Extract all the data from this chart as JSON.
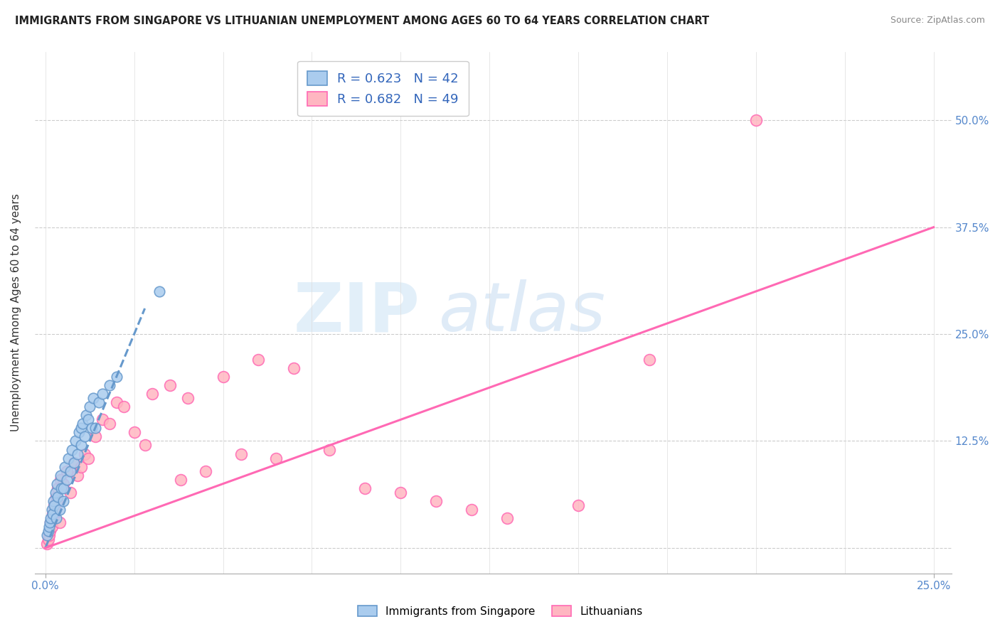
{
  "title": "IMMIGRANTS FROM SINGAPORE VS LITHUANIAN UNEMPLOYMENT AMONG AGES 60 TO 64 YEARS CORRELATION CHART",
  "source": "Source: ZipAtlas.com",
  "ylabel": "Unemployment Among Ages 60 to 64 years",
  "legend1_label": "R = 0.623   N = 42",
  "legend2_label": "R = 0.682   N = 49",
  "bottom_legend1": "Immigrants from Singapore",
  "bottom_legend2": "Lithuanians",
  "singapore_color": "#6699CC",
  "singapore_fill": "#AACCEE",
  "lithuanian_color": "#FF69B4",
  "lithuanian_fill": "#FFB6C1",
  "singapore_scatter_x": [
    0.05,
    0.08,
    0.1,
    0.12,
    0.15,
    0.18,
    0.2,
    0.22,
    0.25,
    0.28,
    0.3,
    0.32,
    0.35,
    0.4,
    0.42,
    0.45,
    0.5,
    0.5,
    0.55,
    0.6,
    0.65,
    0.7,
    0.75,
    0.8,
    0.85,
    0.9,
    0.95,
    1.0,
    1.0,
    1.05,
    1.1,
    1.15,
    1.2,
    1.25,
    1.3,
    1.35,
    1.4,
    1.5,
    1.6,
    1.8,
    2.0,
    3.2
  ],
  "singapore_scatter_y": [
    1.5,
    2.0,
    2.5,
    3.0,
    3.5,
    4.5,
    4.0,
    5.5,
    5.0,
    6.5,
    3.5,
    7.5,
    6.0,
    4.5,
    8.5,
    7.0,
    5.5,
    7.0,
    9.5,
    8.0,
    10.5,
    9.0,
    11.5,
    10.0,
    12.5,
    11.0,
    13.5,
    12.0,
    14.0,
    14.5,
    13.0,
    15.5,
    15.0,
    16.5,
    14.0,
    17.5,
    14.0,
    17.0,
    18.0,
    19.0,
    20.0,
    30.0
  ],
  "lithuanian_scatter_x": [
    0.05,
    0.08,
    0.1,
    0.12,
    0.15,
    0.18,
    0.2,
    0.22,
    0.25,
    0.28,
    0.3,
    0.32,
    0.35,
    0.4,
    0.42,
    0.5,
    0.6,
    0.7,
    0.8,
    0.9,
    1.0,
    1.1,
    1.2,
    1.4,
    1.6,
    1.8,
    2.0,
    2.2,
    2.5,
    2.8,
    3.0,
    3.5,
    3.8,
    4.0,
    4.5,
    5.0,
    5.5,
    6.0,
    6.5,
    7.0,
    8.0,
    9.0,
    10.0,
    11.0,
    12.0,
    13.0,
    15.0,
    17.0,
    20.0
  ],
  "lithuanian_scatter_y": [
    0.5,
    1.0,
    1.5,
    2.0,
    3.0,
    2.5,
    4.0,
    3.5,
    5.0,
    4.5,
    6.0,
    5.5,
    7.0,
    3.0,
    8.0,
    7.5,
    9.0,
    6.5,
    10.0,
    8.5,
    9.5,
    11.0,
    10.5,
    13.0,
    15.0,
    14.5,
    17.0,
    16.5,
    13.5,
    12.0,
    18.0,
    19.0,
    8.0,
    17.5,
    9.0,
    20.0,
    11.0,
    22.0,
    10.5,
    21.0,
    11.5,
    7.0,
    6.5,
    5.5,
    4.5,
    3.5,
    5.0,
    22.0,
    50.0
  ],
  "sg_trend_x": [
    0.0,
    2.8
  ],
  "sg_trend_y": [
    0.0,
    28.0
  ],
  "lt_trend_x": [
    0.0,
    25.0
  ],
  "lt_trend_y": [
    0.0,
    37.5
  ],
  "ytick_values": [
    0,
    12.5,
    25.0,
    37.5,
    50.0
  ],
  "ytick_labels": [
    "",
    "12.5%",
    "25.0%",
    "37.5%",
    "50.0%"
  ],
  "xlim": [
    -0.3,
    25.5
  ],
  "ylim": [
    -3,
    58
  ]
}
